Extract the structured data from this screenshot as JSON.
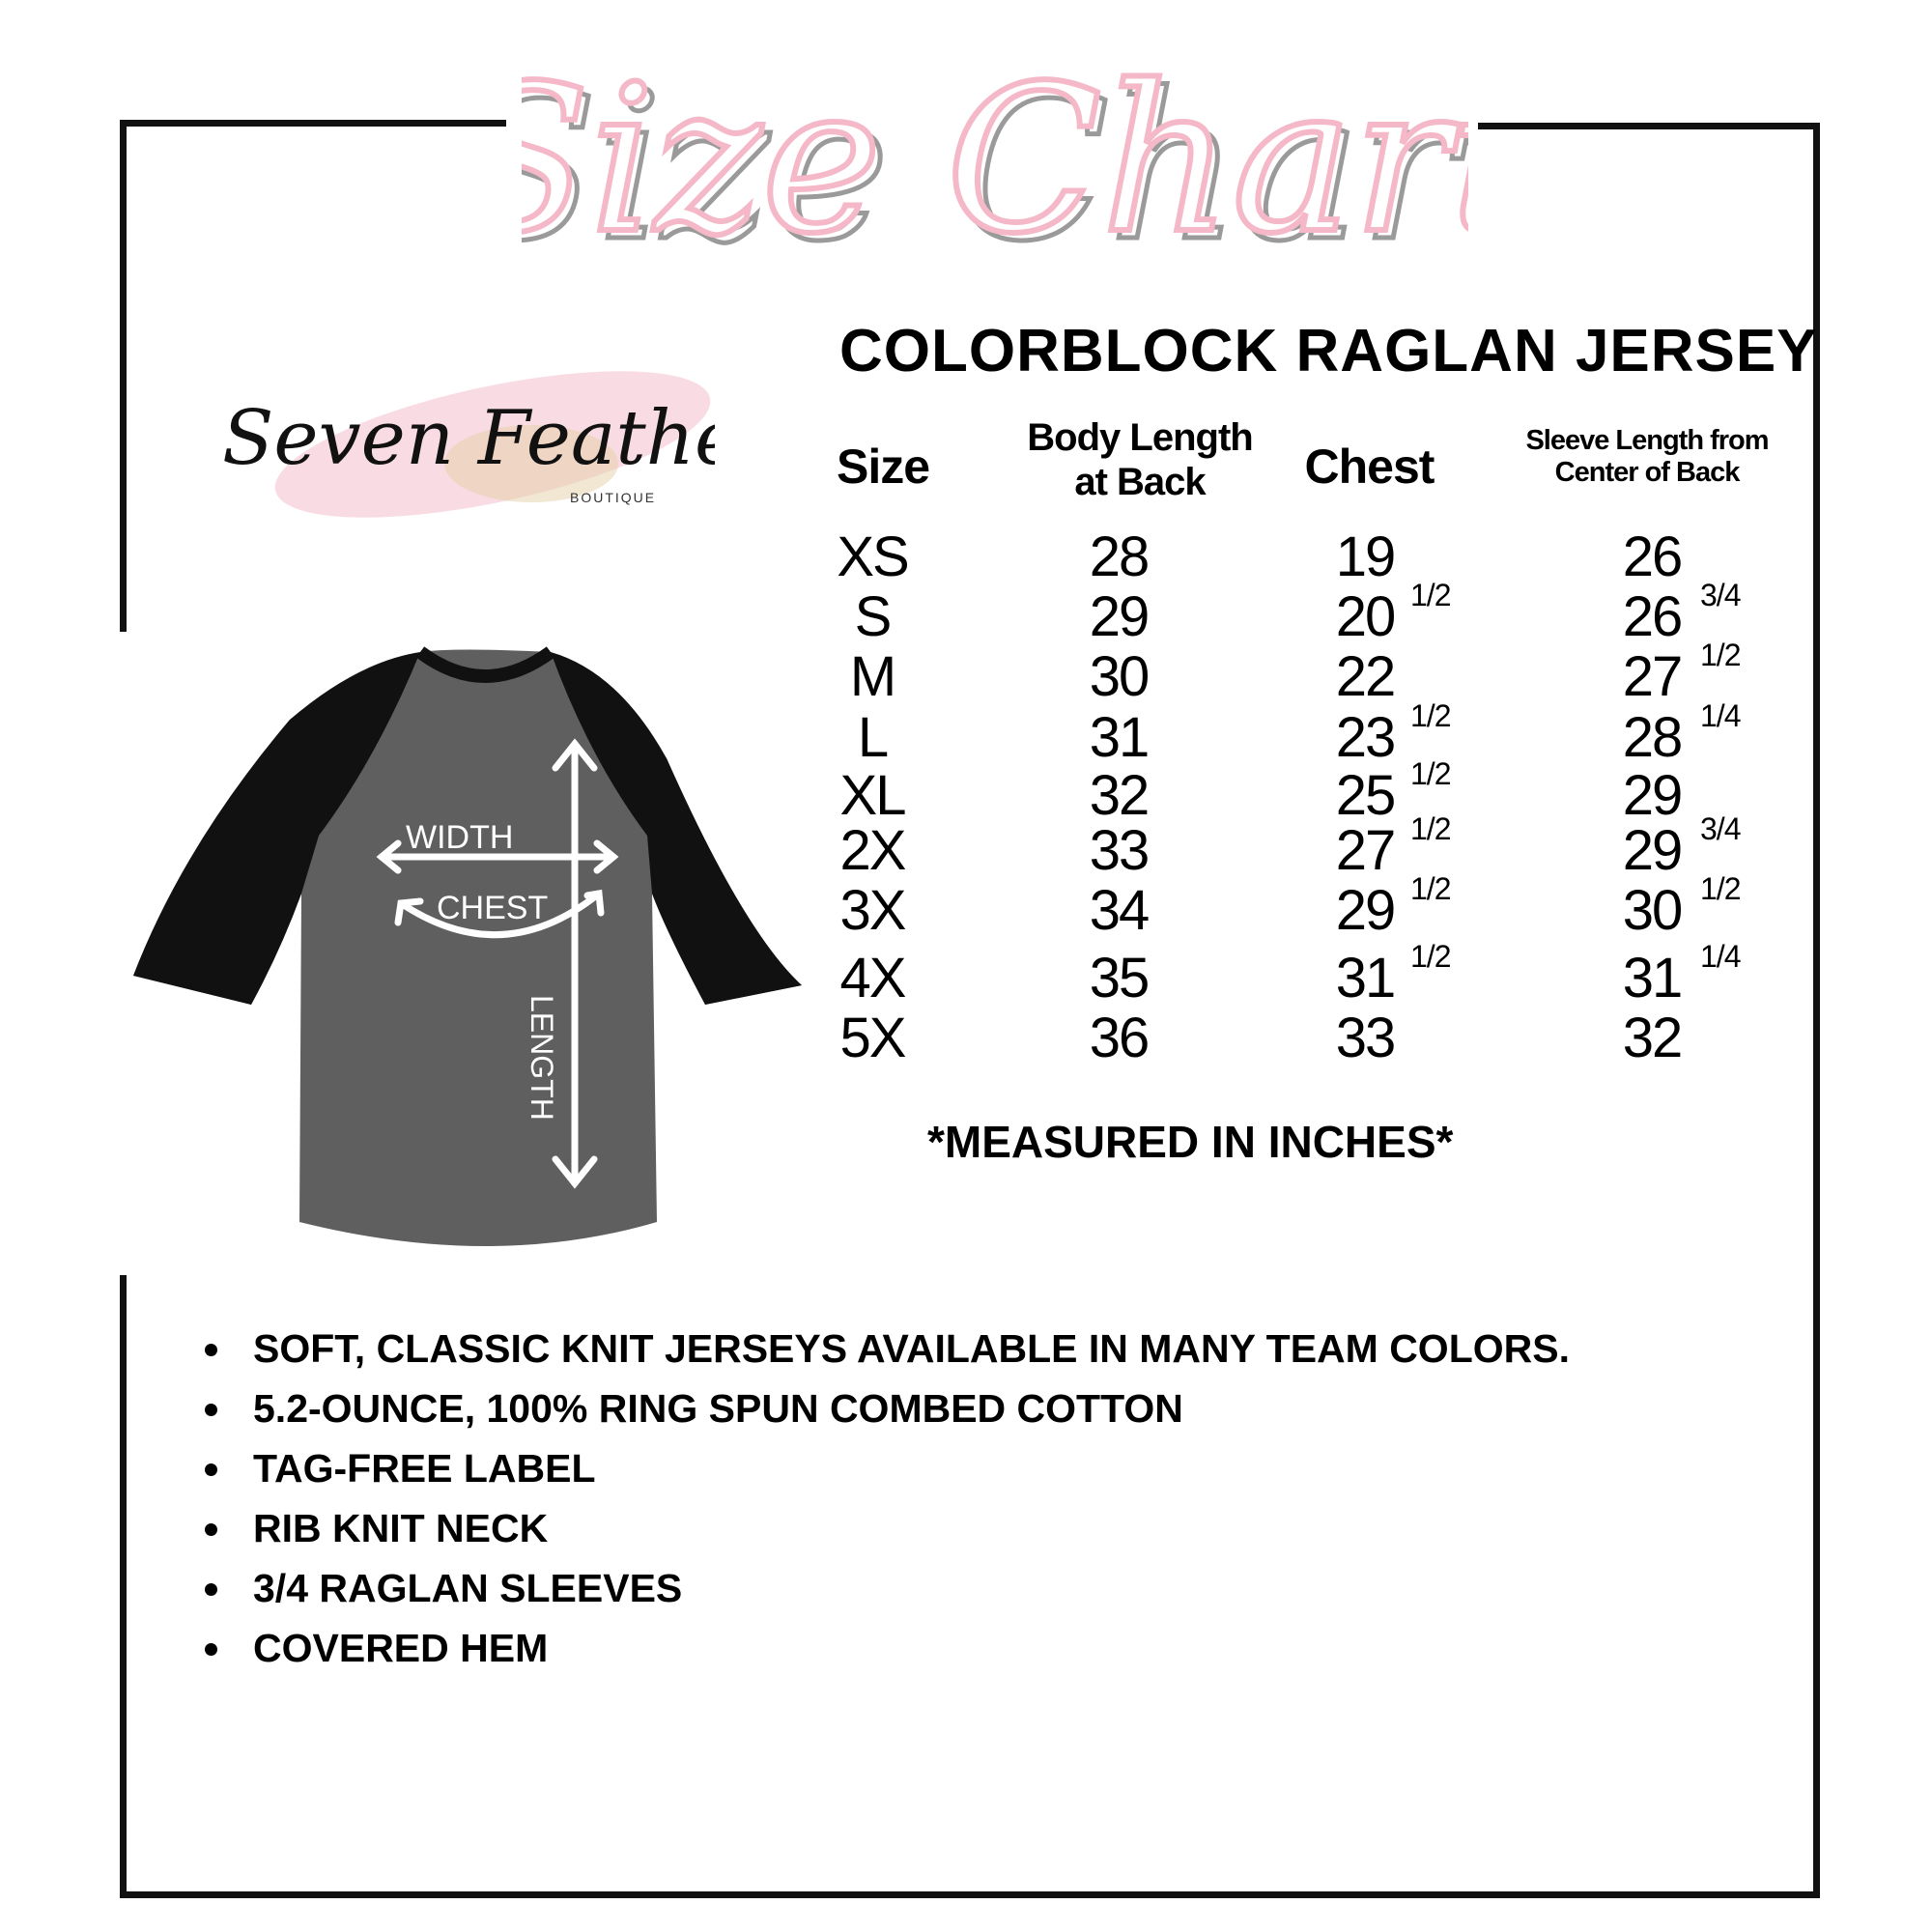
{
  "title": "Size Chart",
  "logo": {
    "brand": "Seven Feathers",
    "sub": "BOUTIQUE"
  },
  "heading": "COLORBLOCK RAGLAN JERSEY",
  "colors": {
    "title_pink": "#f5b8c8",
    "title_shadow": "#9a9a9a",
    "shirt_body": "#5f5f5f",
    "shirt_sleeves": "#111111",
    "frame": "#111111"
  },
  "table": {
    "headers": {
      "size": "Size",
      "body_1": "Body Length",
      "body_2": "at Back",
      "chest": "Chest",
      "sleeve_1": "Sleeve Length from",
      "sleeve_2": "Center of Back"
    },
    "rows": [
      {
        "size": "XS",
        "body": "28",
        "chest": "19",
        "chest_frac": "",
        "sleeve": "26",
        "sleeve_frac": ""
      },
      {
        "size": "S",
        "body": "29",
        "chest": "20",
        "chest_frac": "1/2",
        "sleeve": "26",
        "sleeve_frac": "3/4"
      },
      {
        "size": "M",
        "body": "30",
        "chest": "22",
        "chest_frac": "",
        "sleeve": "27",
        "sleeve_frac": "1/2"
      },
      {
        "size": "L",
        "body": "31",
        "chest": "23",
        "chest_frac": "1/2",
        "sleeve": "28",
        "sleeve_frac": "1/4"
      },
      {
        "size": "XL",
        "body": "32",
        "chest": "25",
        "chest_frac": "1/2",
        "sleeve": "29",
        "sleeve_frac": ""
      },
      {
        "size": "2X",
        "body": "33",
        "chest": "27",
        "chest_frac": "1/2",
        "sleeve": "29",
        "sleeve_frac": "3/4"
      },
      {
        "size": "3X",
        "body": "34",
        "chest": "29",
        "chest_frac": "1/2",
        "sleeve": "30",
        "sleeve_frac": "1/2"
      },
      {
        "size": "4X",
        "body": "35",
        "chest": "31",
        "chest_frac": "1/2",
        "sleeve": "31",
        "sleeve_frac": "1/4"
      },
      {
        "size": "5X",
        "body": "36",
        "chest": "33",
        "chest_frac": "",
        "sleeve": "32",
        "sleeve_frac": ""
      }
    ]
  },
  "note": "*MEASURED IN INCHES*",
  "diagram": {
    "width": "WIDTH",
    "chest": "CHEST",
    "length": "LENGTH"
  },
  "features": [
    "SOFT, CLASSIC KNIT JERSEYS AVAILABLE IN MANY TEAM COLORS.",
    "5.2-OUNCE, 100% RING SPUN COMBED COTTON",
    "TAG-FREE LABEL",
    "RIB KNIT NECK",
    "3/4 RAGLAN SLEEVES",
    "COVERED HEM"
  ]
}
